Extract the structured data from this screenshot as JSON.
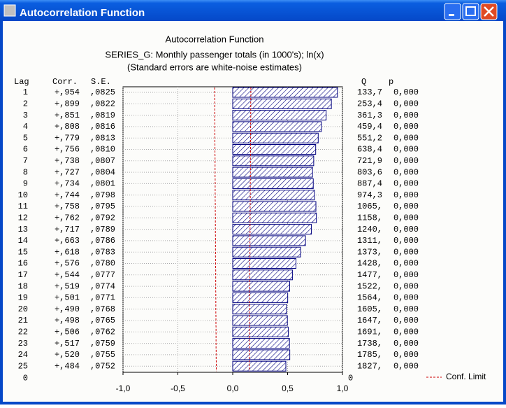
{
  "window": {
    "title": "Autocorrelation Function"
  },
  "chart_data": {
    "type": "acf",
    "title": "Autocorrelation Function",
    "subtitle": [
      "SERIES_G: Monthly passenger totals (in 1000's); ln(x)",
      "(Standard errors are white-noise estimates)"
    ],
    "column_headers": {
      "lag": "Lag",
      "corr": "Corr.",
      "se": "S.E.",
      "q": "Q",
      "p": "p"
    },
    "categories": [
      "1",
      "2",
      "3",
      "4",
      "5",
      "6",
      "7",
      "8",
      "9",
      "10",
      "11",
      "12",
      "13",
      "14",
      "15",
      "16",
      "17",
      "18",
      "19",
      "20",
      "21",
      "22",
      "23",
      "24",
      "25"
    ],
    "values": [
      0.954,
      0.899,
      0.851,
      0.808,
      0.779,
      0.756,
      0.738,
      0.727,
      0.734,
      0.744,
      0.758,
      0.762,
      0.717,
      0.663,
      0.618,
      0.576,
      0.544,
      0.519,
      0.501,
      0.49,
      0.498,
      0.506,
      0.517,
      0.52,
      0.484
    ],
    "value_labels": [
      "+,954",
      "+,899",
      "+,851",
      "+,808",
      "+,779",
      "+,756",
      "+,738",
      "+,727",
      "+,734",
      "+,744",
      "+,758",
      "+,762",
      "+,717",
      "+,663",
      "+,618",
      "+,576",
      "+,544",
      "+,519",
      "+,501",
      "+,490",
      "+,498",
      "+,506",
      "+,517",
      "+,520",
      "+,484"
    ],
    "se": [
      ",0825",
      ",0822",
      ",0819",
      ",0816",
      ",0813",
      ",0810",
      ",0807",
      ",0804",
      ",0801",
      ",0798",
      ",0795",
      ",0792",
      ",0789",
      ",0786",
      ",0783",
      ",0780",
      ",0777",
      ",0774",
      ",0771",
      ",0768",
      ",0765",
      ",0762",
      ",0759",
      ",0755",
      ",0752"
    ],
    "q": [
      "133,7",
      "253,4",
      "361,3",
      "459,4",
      "551,2",
      "638,4",
      "721,9",
      "803,6",
      "887,4",
      "974,3",
      "1065,",
      "1158,",
      "1240,",
      "1311,",
      "1373,",
      "1428,",
      "1477,",
      "1522,",
      "1564,",
      "1605,",
      "1647,",
      "1691,",
      "1738,",
      "1785,",
      "1827,"
    ],
    "p": [
      "0,000",
      "0,000",
      "0,000",
      "0,000",
      "0,000",
      "0,000",
      "0,000",
      "0,000",
      "0,000",
      "0,000",
      "0,000",
      "0,000",
      "0,000",
      "0,000",
      "0,000",
      "0,000",
      "0,000",
      "0,000",
      "0,000",
      "0,000",
      "0,000",
      "0,000",
      "0,000",
      "0,000",
      "0,000"
    ],
    "conf_limit": [
      0.165,
      0.164,
      0.164,
      0.163,
      0.163,
      0.162,
      0.161,
      0.161,
      0.16,
      0.16,
      0.159,
      0.158,
      0.158,
      0.157,
      0.157,
      0.156,
      0.155,
      0.155,
      0.154,
      0.154,
      0.153,
      0.152,
      0.152,
      0.151,
      0.15
    ],
    "conf_limit_name": "Conf. Limit",
    "lag_axis_end": "0",
    "q_axis_end": "0",
    "color": "#00007f",
    "conf_color": "#cc0000",
    "xlim": [
      -1,
      1
    ],
    "xticks": [
      {
        "value": -1,
        "label": "-1,0"
      },
      {
        "value": -0.5,
        "label": "-0,5"
      },
      {
        "value": 0,
        "label": "0,0"
      },
      {
        "value": 0.5,
        "label": "0,5"
      },
      {
        "value": 1,
        "label": "1,0"
      }
    ],
    "grid": true
  }
}
